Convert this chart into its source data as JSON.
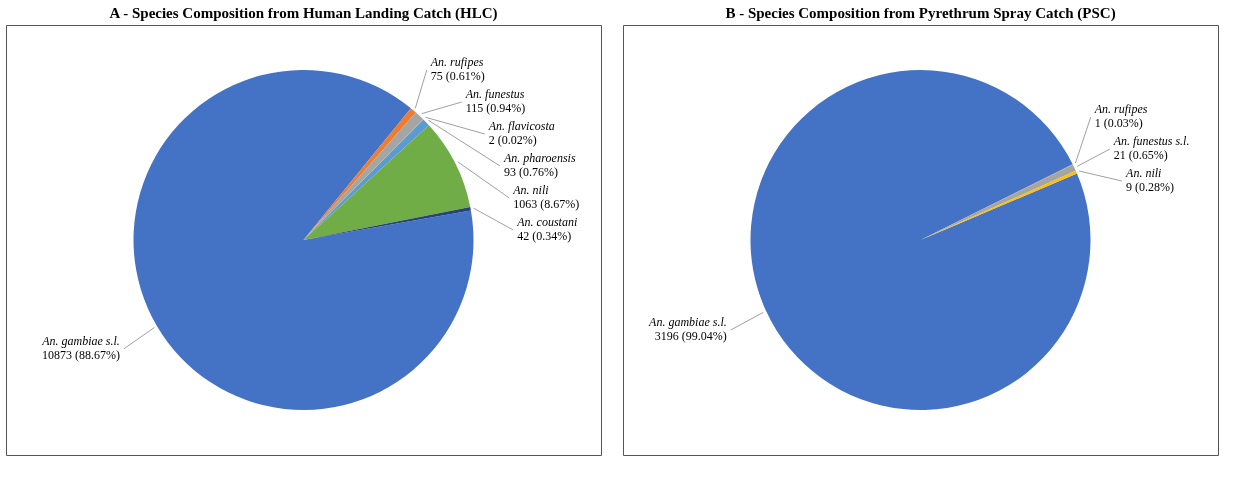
{
  "chart_data": [
    {
      "type": "pie",
      "title": "A -  Species Composition from Human Landing Catch (HLC)",
      "categories": [
        "An. gambiae s.l.",
        "An. rufipes",
        "An. funestus",
        "An. flavicosta",
        "An. pharoensis",
        "An. nili",
        "An. coustani"
      ],
      "values": [
        10873,
        75,
        115,
        2,
        93,
        1063,
        42
      ],
      "value_labels": [
        "10873 (88.67%)",
        "75 (0.61%)",
        "115 (0.94%)",
        "2 (0.02%)",
        "93 (0.76%)",
        "1063 (8.67%)",
        "42 (0.34%)"
      ],
      "colors": [
        "#4472c4",
        "#ed7d31",
        "#a5a5a5",
        "#ffc000",
        "#5b9bd5",
        "#70ad47",
        "#264478"
      ],
      "legend": false
    },
    {
      "type": "pie",
      "title": "B -  Species Composition from Pyrethrum Spray Catch (PSC)",
      "categories": [
        "An. gambiae s.l.",
        "An. rufipes",
        "An. funestus s.l.",
        "An. nili"
      ],
      "values": [
        3196,
        1,
        21,
        9
      ],
      "value_labels": [
        "3196 (99.04%)",
        "1 (0.03%)",
        "21 (0.65%)",
        "9 (0.28%)"
      ],
      "colors": [
        "#4472c4",
        "#ed7d31",
        "#a5a5a5",
        "#ffc000"
      ],
      "legend": false
    }
  ]
}
